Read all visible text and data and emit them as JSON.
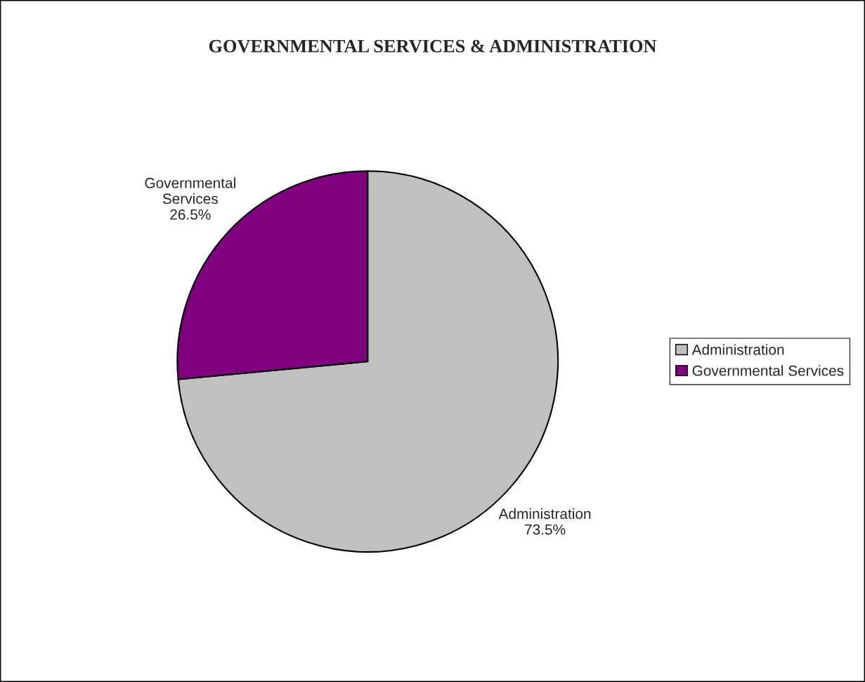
{
  "chart_data": {
    "type": "pie",
    "title": "GOVERNMENTAL SERVICES & ADMINISTRATION",
    "categories": [
      "Administration",
      "Governmental Services"
    ],
    "values": [
      73.5,
      26.5
    ],
    "colors": [
      "#c0c0c0",
      "#800080"
    ],
    "value_labels": [
      "73.5%",
      "26.5%"
    ],
    "legend": "right"
  }
}
